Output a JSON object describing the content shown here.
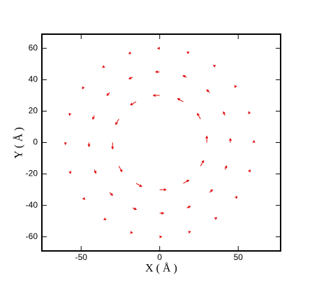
{
  "chart_data": {
    "type": "quiver",
    "xlabel": "X ( Å )",
    "ylabel": "Y ( Å )",
    "color": "#e00000",
    "xlim": [
      -75,
      77
    ],
    "ylim": [
      -69,
      69
    ],
    "xticks": [
      -50,
      0,
      50
    ],
    "yticks": [
      -60,
      -40,
      -20,
      0,
      20,
      40,
      60
    ],
    "x": [
      30,
      26,
      15,
      0,
      -15,
      -26,
      -30,
      -26,
      -15,
      0,
      15,
      26,
      45,
      41.6,
      31.8,
      17.2,
      0,
      -17.2,
      -31.8,
      -41.6,
      -45,
      -41.6,
      -31.8,
      -17.2,
      0,
      17.2,
      31.8,
      41.6,
      60,
      57.1,
      48.5,
      35.3,
      18.5,
      0,
      -18.5,
      -35.3,
      -48.5,
      -57.1,
      -60,
      -57.1,
      -48.5,
      -35.3,
      -18.5,
      0,
      18.5,
      35.3,
      48.5,
      57.1
    ],
    "y": [
      0,
      15,
      26,
      30,
      26,
      15,
      0,
      -15,
      -26,
      -30,
      -26,
      -15,
      0,
      17.2,
      31.8,
      41.6,
      45,
      41.6,
      31.8,
      17.2,
      0,
      -17.2,
      -31.8,
      -41.6,
      -45,
      -41.6,
      -31.8,
      -17.2,
      0,
      18.5,
      35.3,
      48.5,
      57.1,
      60,
      57.1,
      48.5,
      35.3,
      18.5,
      0,
      -18.5,
      -35.3,
      -48.5,
      -57.1,
      -60,
      -57.1,
      -48.5,
      -35.3,
      -18.5
    ],
    "u": [
      0,
      -2,
      -3.5,
      -4,
      -3.5,
      -2,
      0,
      2,
      3.5,
      4,
      3.5,
      2,
      0,
      -1,
      -1.8,
      -2.3,
      -2.5,
      -2.3,
      -1.8,
      -1,
      0,
      1,
      1.8,
      2.3,
      2.5,
      2.3,
      1.8,
      1,
      0,
      -0.4,
      -0.7,
      -1,
      -1.1,
      -1.2,
      -1.1,
      -1,
      -0.7,
      -0.4,
      0,
      0.4,
      0.7,
      1,
      1.1,
      1.2,
      1.1,
      1,
      0.7,
      0.4
    ],
    "v": [
      4,
      3.5,
      2,
      0,
      -2,
      -3.5,
      -4,
      -3.5,
      -2,
      0,
      2,
      3.5,
      2.5,
      2.3,
      1.8,
      1,
      0,
      -1,
      -1.8,
      -2.3,
      -2.5,
      -2.3,
      -1.8,
      -1,
      0,
      1,
      1.8,
      2.3,
      1.2,
      1.1,
      1,
      0.7,
      0.4,
      0,
      -0.4,
      -0.7,
      -1,
      -1.1,
      -1.2,
      -1.1,
      -1,
      -0.7,
      -0.4,
      0,
      0.4,
      0.7,
      1,
      1.1
    ]
  }
}
